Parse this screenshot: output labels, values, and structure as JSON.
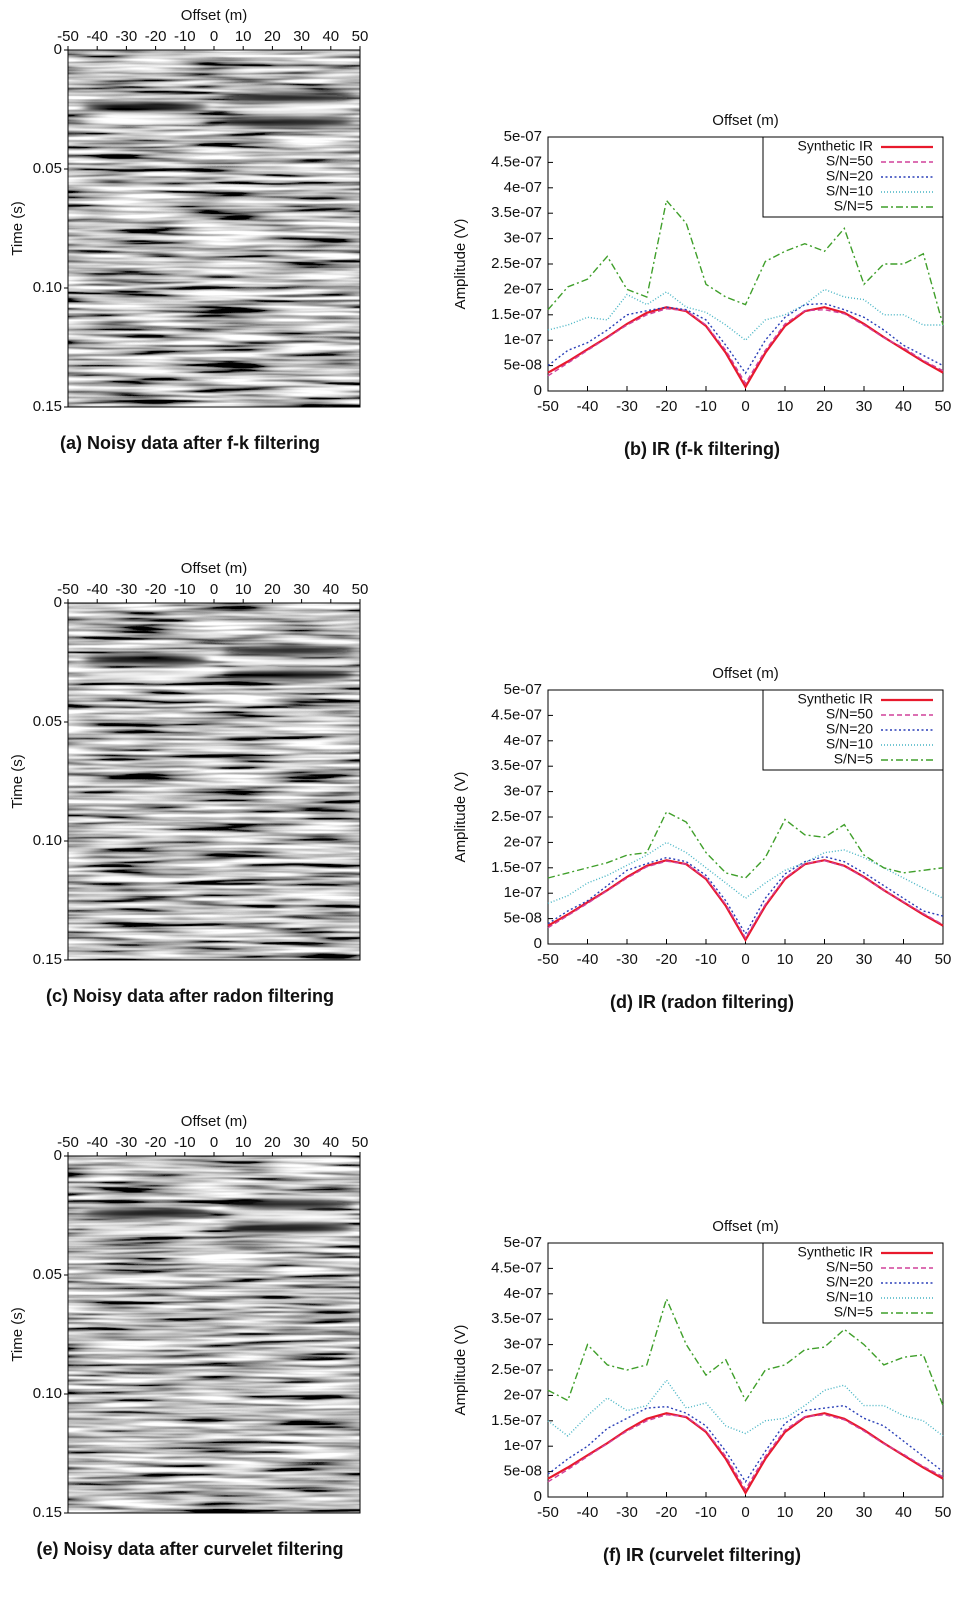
{
  "chart_data": [
    {
      "type": "image",
      "xlabel": "Offset (m)",
      "ylabel": "Time (s)",
      "caption": "(a) Noisy data after f-k filtering",
      "xlim": [
        -50,
        50
      ],
      "xticks": [
        -50,
        -40,
        -30,
        -20,
        -10,
        0,
        10,
        20,
        30,
        40,
        50
      ],
      "ylim": [
        0,
        0.15
      ],
      "yticks": [
        0,
        0.05,
        {
          "value": 0.1,
          "label": "0.10"
        },
        0.15
      ],
      "y_inverted": true
    },
    {
      "type": "line",
      "xlabel": "Offset (m)",
      "ylabel": "Amplitude (V)",
      "caption": "(b) IR (f-k filtering)",
      "x": [
        -50,
        -45,
        -40,
        -35,
        -30,
        -25,
        -20,
        -15,
        -10,
        -5,
        0,
        5,
        10,
        15,
        20,
        25,
        30,
        35,
        40,
        45,
        50
      ],
      "xlim": [
        -50,
        50
      ],
      "xticks": [
        -50,
        -40,
        -30,
        -20,
        -10,
        0,
        10,
        20,
        30,
        40,
        50
      ],
      "ylim": [
        0,
        5e-07
      ],
      "yticks": [
        0,
        {
          "value": 5e-08,
          "label": "5e-08"
        },
        {
          "value": 1e-07,
          "label": "1e-07"
        },
        {
          "value": 1.5e-07,
          "label": "1.5e-07"
        },
        {
          "value": 2e-07,
          "label": "2e-07"
        },
        {
          "value": 2.5e-07,
          "label": "2.5e-07"
        },
        {
          "value": 3e-07,
          "label": "3e-07"
        },
        {
          "value": 3.5e-07,
          "label": "3.5e-07"
        },
        {
          "value": 4e-07,
          "label": "4e-07"
        },
        {
          "value": 4.5e-07,
          "label": "4.5e-07"
        },
        {
          "value": 5e-07,
          "label": "5e-07"
        }
      ],
      "legend": "upper right",
      "series": [
        {
          "name": "Synthetic IR",
          "color": "#e8192c",
          "dash": "solid",
          "values": [
            3.6e-08,
            5.8e-08,
            8.2e-08,
            1.06e-07,
            1.32e-07,
            1.54e-07,
            1.65e-07,
            1.57e-07,
            1.28e-07,
            7.5e-08,
            8e-09,
            7.5e-08,
            1.28e-07,
            1.57e-07,
            1.65e-07,
            1.54e-07,
            1.32e-07,
            1.06e-07,
            8.2e-08,
            5.8e-08,
            3.6e-08
          ]
        },
        {
          "name": "S/N=50",
          "color": "#d0409a",
          "dash": "dashed",
          "values": [
            3e-08,
            5.5e-08,
            8e-08,
            1.05e-07,
            1.3e-07,
            1.5e-07,
            1.62e-07,
            1.58e-07,
            1.3e-07,
            8e-08,
            1.5e-08,
            8e-08,
            1.32e-07,
            1.58e-07,
            1.6e-07,
            1.52e-07,
            1.3e-07,
            1.05e-07,
            8.5e-08,
            6e-08,
            4e-08
          ]
        },
        {
          "name": "S/N=20",
          "color": "#2a3fb8",
          "dash": "dotted",
          "values": [
            5e-08,
            8e-08,
            9.5e-08,
            1.2e-07,
            1.5e-07,
            1.58e-07,
            1.65e-07,
            1.6e-07,
            1.4e-07,
            9e-08,
            3.5e-08,
            1e-07,
            1.45e-07,
            1.7e-07,
            1.72e-07,
            1.6e-07,
            1.45e-07,
            1.2e-07,
            9e-08,
            7e-08,
            5e-08
          ]
        },
        {
          "name": "S/N=10",
          "color": "#45b4c4",
          "dash": "fine-dotted",
          "values": [
            1.2e-07,
            1.3e-07,
            1.45e-07,
            1.4e-07,
            1.9e-07,
            1.7e-07,
            1.95e-07,
            1.65e-07,
            1.55e-07,
            1.3e-07,
            1e-07,
            1.4e-07,
            1.5e-07,
            1.7e-07,
            2e-07,
            1.85e-07,
            1.8e-07,
            1.5e-07,
            1.5e-07,
            1.3e-07,
            1.3e-07
          ]
        },
        {
          "name": "S/N=5",
          "color": "#3f9f2a",
          "dash": "dash-dot",
          "values": [
            1.6e-07,
            2.05e-07,
            2.2e-07,
            2.65e-07,
            2e-07,
            1.85e-07,
            3.75e-07,
            3.3e-07,
            2.1e-07,
            1.85e-07,
            1.7e-07,
            2.55e-07,
            2.75e-07,
            2.9e-07,
            2.75e-07,
            3.2e-07,
            2.1e-07,
            2.5e-07,
            2.5e-07,
            2.7e-07,
            1.3e-07
          ]
        }
      ]
    },
    {
      "type": "image",
      "xlabel": "Offset (m)",
      "ylabel": "Time (s)",
      "caption": "(c) Noisy data after radon filtering",
      "xlim": [
        -50,
        50
      ],
      "xticks": [
        -50,
        -40,
        -30,
        -20,
        -10,
        0,
        10,
        20,
        30,
        40,
        50
      ],
      "ylim": [
        0,
        0.15
      ],
      "yticks": [
        0,
        0.05,
        {
          "value": 0.1,
          "label": "0.10"
        },
        0.15
      ],
      "y_inverted": true
    },
    {
      "type": "line",
      "xlabel": "Offset (m)",
      "ylabel": "Amplitude (V)",
      "caption": "(d) IR (radon filtering)",
      "x": [
        -50,
        -45,
        -40,
        -35,
        -30,
        -25,
        -20,
        -15,
        -10,
        -5,
        0,
        5,
        10,
        15,
        20,
        25,
        30,
        35,
        40,
        45,
        50
      ],
      "xlim": [
        -50,
        50
      ],
      "xticks": [
        -50,
        -40,
        -30,
        -20,
        -10,
        0,
        10,
        20,
        30,
        40,
        50
      ],
      "ylim": [
        0,
        5e-07
      ],
      "yticks": [
        0,
        {
          "value": 5e-08,
          "label": "5e-08"
        },
        {
          "value": 1e-07,
          "label": "1e-07"
        },
        {
          "value": 1.5e-07,
          "label": "1.5e-07"
        },
        {
          "value": 2e-07,
          "label": "2e-07"
        },
        {
          "value": 2.5e-07,
          "label": "2.5e-07"
        },
        {
          "value": 3e-07,
          "label": "3e-07"
        },
        {
          "value": 3.5e-07,
          "label": "3.5e-07"
        },
        {
          "value": 4e-07,
          "label": "4e-07"
        },
        {
          "value": 4.5e-07,
          "label": "4.5e-07"
        },
        {
          "value": 5e-07,
          "label": "5e-07"
        }
      ],
      "legend": "upper right",
      "series": [
        {
          "name": "Synthetic IR",
          "color": "#e8192c",
          "dash": "solid",
          "values": [
            3.6e-08,
            5.8e-08,
            8.2e-08,
            1.06e-07,
            1.32e-07,
            1.54e-07,
            1.65e-07,
            1.57e-07,
            1.28e-07,
            7.5e-08,
            8e-09,
            7.5e-08,
            1.28e-07,
            1.57e-07,
            1.65e-07,
            1.54e-07,
            1.32e-07,
            1.06e-07,
            8.2e-08,
            5.8e-08,
            3.6e-08
          ]
        },
        {
          "name": "S/N=50",
          "color": "#d0409a",
          "dash": "dashed",
          "values": [
            3.2e-08,
            5.6e-08,
            8e-08,
            1.05e-07,
            1.3e-07,
            1.52e-07,
            1.63e-07,
            1.57e-07,
            1.3e-07,
            7.8e-08,
            1.2e-08,
            7.8e-08,
            1.3e-07,
            1.58e-07,
            1.64e-07,
            1.53e-07,
            1.31e-07,
            1.06e-07,
            8.3e-08,
            6e-08,
            3.8e-08
          ]
        },
        {
          "name": "S/N=20",
          "color": "#2a3fb8",
          "dash": "dotted",
          "values": [
            4e-08,
            6.5e-08,
            8.5e-08,
            1.15e-07,
            1.45e-07,
            1.58e-07,
            1.7e-07,
            1.62e-07,
            1.35e-07,
            8.5e-08,
            2e-08,
            9e-08,
            1.38e-07,
            1.62e-07,
            1.72e-07,
            1.62e-07,
            1.4e-07,
            1.15e-07,
            9e-08,
            6.5e-08,
            5.5e-08
          ]
        },
        {
          "name": "S/N=10",
          "color": "#45b4c4",
          "dash": "fine-dotted",
          "values": [
            8e-08,
            9.5e-08,
            1.2e-07,
            1.35e-07,
            1.55e-07,
            1.75e-07,
            2e-07,
            1.8e-07,
            1.5e-07,
            1.2e-07,
            9e-08,
            1.2e-07,
            1.45e-07,
            1.6e-07,
            1.8e-07,
            1.85e-07,
            1.7e-07,
            1.5e-07,
            1.3e-07,
            1.1e-07,
            9e-08
          ]
        },
        {
          "name": "S/N=5",
          "color": "#3f9f2a",
          "dash": "dash-dot",
          "values": [
            1.3e-07,
            1.4e-07,
            1.5e-07,
            1.6e-07,
            1.75e-07,
            1.8e-07,
            2.6e-07,
            2.4e-07,
            1.8e-07,
            1.4e-07,
            1.3e-07,
            1.7e-07,
            2.45e-07,
            2.15e-07,
            2.1e-07,
            2.35e-07,
            1.75e-07,
            1.5e-07,
            1.4e-07,
            1.45e-07,
            1.5e-07
          ]
        }
      ]
    },
    {
      "type": "image",
      "xlabel": "Offset (m)",
      "ylabel": "Time (s)",
      "caption": "(e) Noisy data after curvelet filtering",
      "xlim": [
        -50,
        50
      ],
      "xticks": [
        -50,
        -40,
        -30,
        -20,
        -10,
        0,
        10,
        20,
        30,
        40,
        50
      ],
      "ylim": [
        0,
        0.15
      ],
      "yticks": [
        0,
        0.05,
        {
          "value": 0.1,
          "label": "0.10"
        },
        0.15
      ],
      "y_inverted": true
    },
    {
      "type": "line",
      "xlabel": "Offset (m)",
      "ylabel": "Amplitude (V)",
      "caption": "(f) IR (curvelet filtering)",
      "x": [
        -50,
        -45,
        -40,
        -35,
        -30,
        -25,
        -20,
        -15,
        -10,
        -5,
        0,
        5,
        10,
        15,
        20,
        25,
        30,
        35,
        40,
        45,
        50
      ],
      "xlim": [
        -50,
        50
      ],
      "xticks": [
        -50,
        -40,
        -30,
        -20,
        -10,
        0,
        10,
        20,
        30,
        40,
        50
      ],
      "ylim": [
        0,
        5e-07
      ],
      "yticks": [
        0,
        {
          "value": 5e-08,
          "label": "5e-08"
        },
        {
          "value": 1e-07,
          "label": "1e-07"
        },
        {
          "value": 1.5e-07,
          "label": "1.5e-07"
        },
        {
          "value": 2e-07,
          "label": "2e-07"
        },
        {
          "value": 2.5e-07,
          "label": "2.5e-07"
        },
        {
          "value": 3e-07,
          "label": "3e-07"
        },
        {
          "value": 3.5e-07,
          "label": "3.5e-07"
        },
        {
          "value": 4e-07,
          "label": "4e-07"
        },
        {
          "value": 4.5e-07,
          "label": "4.5e-07"
        },
        {
          "value": 5e-07,
          "label": "5e-07"
        }
      ],
      "legend": "upper right",
      "series": [
        {
          "name": "Synthetic IR",
          "color": "#e8192c",
          "dash": "solid",
          "values": [
            3.6e-08,
            5.8e-08,
            8.2e-08,
            1.06e-07,
            1.32e-07,
            1.54e-07,
            1.65e-07,
            1.57e-07,
            1.28e-07,
            7.5e-08,
            8e-09,
            7.5e-08,
            1.28e-07,
            1.57e-07,
            1.65e-07,
            1.54e-07,
            1.32e-07,
            1.06e-07,
            8.2e-08,
            5.8e-08,
            3.6e-08
          ]
        },
        {
          "name": "S/N=50",
          "color": "#d0409a",
          "dash": "dashed",
          "values": [
            3e-08,
            5.4e-08,
            8e-08,
            1.05e-07,
            1.3e-07,
            1.5e-07,
            1.62e-07,
            1.58e-07,
            1.3e-07,
            8e-08,
            1.5e-08,
            8e-08,
            1.32e-07,
            1.58e-07,
            1.62e-07,
            1.52e-07,
            1.3e-07,
            1.05e-07,
            8.4e-08,
            6e-08,
            4e-08
          ]
        },
        {
          "name": "S/N=20",
          "color": "#2a3fb8",
          "dash": "dotted",
          "values": [
            4.5e-08,
            7.5e-08,
            1e-07,
            1.35e-07,
            1.55e-07,
            1.75e-07,
            1.78e-07,
            1.65e-07,
            1.4e-07,
            9e-08,
            3e-08,
            9e-08,
            1.45e-07,
            1.7e-07,
            1.75e-07,
            1.8e-07,
            1.55e-07,
            1.4e-07,
            1.1e-07,
            8e-08,
            5e-08
          ]
        },
        {
          "name": "S/N=10",
          "color": "#45b4c4",
          "dash": "fine-dotted",
          "values": [
            1.5e-07,
            1.2e-07,
            1.6e-07,
            1.95e-07,
            1.7e-07,
            1.8e-07,
            2.3e-07,
            1.75e-07,
            1.85e-07,
            1.4e-07,
            1.25e-07,
            1.5e-07,
            1.55e-07,
            1.8e-07,
            2.1e-07,
            2.2e-07,
            1.8e-07,
            1.8e-07,
            1.6e-07,
            1.5e-07,
            1.2e-07
          ]
        },
        {
          "name": "S/N=5",
          "color": "#3f9f2a",
          "dash": "dash-dot",
          "values": [
            2.1e-07,
            1.9e-07,
            3e-07,
            2.6e-07,
            2.5e-07,
            2.6e-07,
            3.9e-07,
            3e-07,
            2.4e-07,
            2.7e-07,
            1.9e-07,
            2.5e-07,
            2.6e-07,
            2.9e-07,
            2.95e-07,
            3.3e-07,
            3e-07,
            2.6e-07,
            2.75e-07,
            2.8e-07,
            1.8e-07
          ]
        }
      ]
    }
  ]
}
